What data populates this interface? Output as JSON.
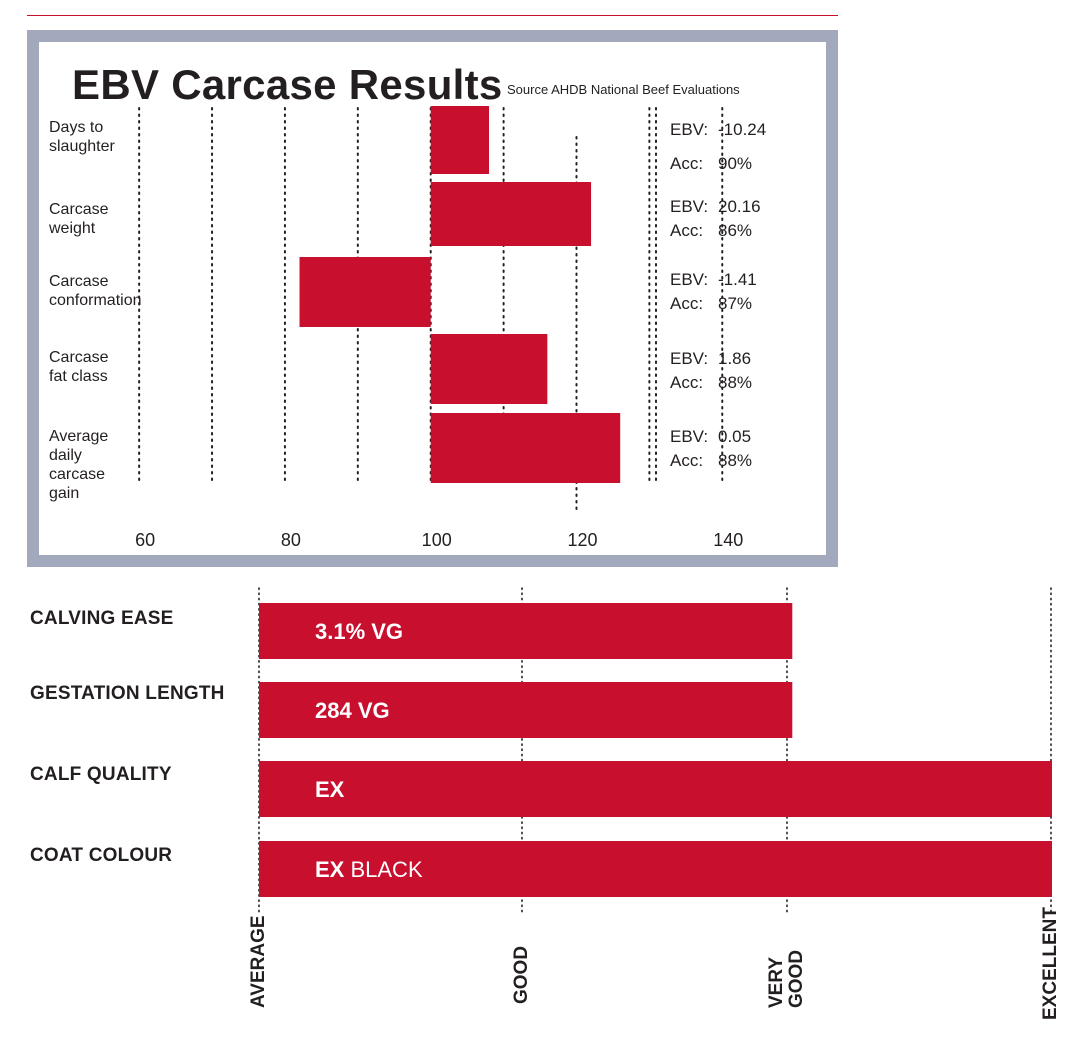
{
  "chart_data": [
    {
      "type": "bar",
      "title": "EBV Carcase Results",
      "subtitle": "Source AHDB National Beef Evaluations",
      "orientation": "horizontal",
      "baseline": 100,
      "xlim": [
        56,
        146
      ],
      "x_ticks": [
        "60",
        "80",
        "100",
        "120",
        "140"
      ],
      "categories": [
        [
          "Days to",
          "slaughter"
        ],
        [
          "Carcase",
          "weight"
        ],
        [
          "Carcase",
          "conformation"
        ],
        [
          "Carcase",
          "fat class"
        ],
        [
          "Average",
          "daily",
          "carcase",
          "gain"
        ]
      ],
      "values": [
        108,
        122,
        82,
        116,
        126
      ],
      "ebv": [
        "-10.24",
        "20.16",
        "-1.41",
        "1.86",
        "0.05"
      ],
      "acc": [
        "90%",
        "86%",
        "87%",
        "88%",
        "88%"
      ],
      "ebv_label": "EBV:",
      "acc_label": "Acc:",
      "bar_color": "#c8102e",
      "grid": "dotted"
    },
    {
      "type": "bar",
      "orientation": "horizontal",
      "categories": [
        "CALVING EASE",
        "GESTATION LENGTH",
        "CALF QUALITY",
        "COAT COLOUR"
      ],
      "scale": [
        "AVERAGE",
        "GOOD",
        "VERY GOOD",
        "EXCELLENT"
      ],
      "scale_lines": [
        [
          "AVERAGE"
        ],
        [
          "GOOD"
        ],
        [
          "VERY",
          "GOOD"
        ],
        [
          "EXCELLENT"
        ]
      ],
      "values": [
        2.02,
        2.02,
        3.0,
        3.0
      ],
      "bar_labels": [
        {
          "bold": "3.1% VG",
          "light": ""
        },
        {
          "bold": "284 VG",
          "light": ""
        },
        {
          "bold": "EX",
          "light": ""
        },
        {
          "bold": "EX",
          "light": " BLACK"
        }
      ],
      "bar_color": "#c8102e",
      "grid": "dotted"
    }
  ]
}
